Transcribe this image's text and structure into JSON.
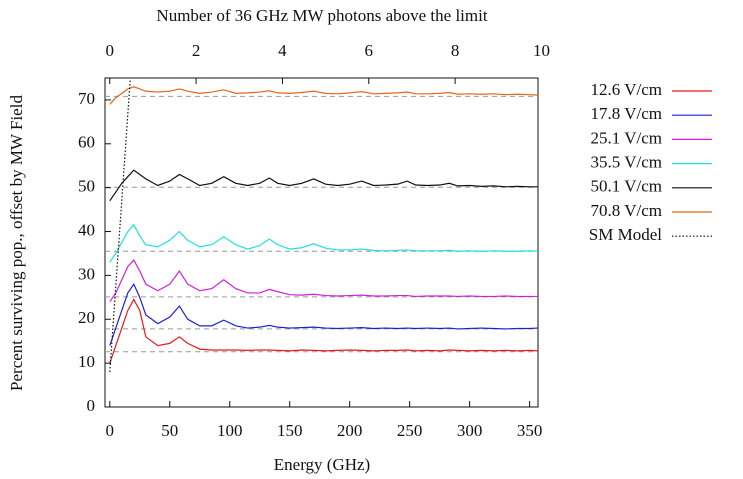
{
  "chart_data": {
    "type": "line",
    "xlabel": "Energy (GHz)",
    "x2label": "Number of 36 GHz MW photons above the limit",
    "ylabel": "Percent surviving pop., offset by MW Field",
    "xlim": [
      -4,
      357
    ],
    "xticks": [
      0,
      50,
      100,
      150,
      200,
      250,
      300,
      350
    ],
    "x2lim": [
      -0.11,
      9.92
    ],
    "x2ticks": [
      0,
      2,
      4,
      6,
      8,
      10
    ],
    "ylim": [
      0,
      75
    ],
    "yticks": [
      0,
      10,
      20,
      30,
      40,
      50,
      60,
      70
    ],
    "grid": false,
    "legend": "outside-right",
    "reference_lines": [
      12.6,
      17.8,
      25.1,
      35.5,
      50.1,
      70.8
    ],
    "reference_color": "#999999",
    "x": [
      0,
      5,
      10,
      15,
      20,
      25,
      30,
      40,
      50,
      58,
      65,
      75,
      85,
      95,
      105,
      115,
      125,
      133,
      140,
      150,
      160,
      170,
      180,
      190,
      200,
      210,
      220,
      230,
      240,
      248,
      255,
      265,
      275,
      283,
      290,
      300,
      310,
      320,
      330,
      340,
      350,
      357
    ],
    "series": [
      {
        "name": "12.6 V/cm",
        "color": "#e41a1c",
        "values": [
          10,
          14,
          18,
          22,
          24.5,
          22,
          16,
          14,
          14.5,
          16,
          14.5,
          13.2,
          13,
          13,
          13,
          12.9,
          13,
          13,
          12.9,
          12.8,
          13,
          12.9,
          12.8,
          12.9,
          13,
          12.9,
          12.8,
          12.9,
          12.9,
          13,
          12.8,
          12.9,
          12.8,
          13,
          12.9,
          12.8,
          12.9,
          12.8,
          12.9,
          12.8,
          12.9,
          12.8
        ]
      },
      {
        "name": "17.8 V/cm",
        "color": "#1f1fd6",
        "values": [
          14,
          18,
          22,
          26,
          28,
          25,
          21,
          19,
          20.5,
          23,
          20,
          18.5,
          18.5,
          19.8,
          18.5,
          18,
          18.2,
          18.6,
          18.2,
          18,
          18.1,
          18.2,
          18,
          17.9,
          18,
          18.1,
          17.9,
          18,
          17.9,
          18,
          17.9,
          18,
          17.9,
          18,
          17.8,
          17.9,
          18,
          17.9,
          17.8,
          17.9,
          17.9,
          18
        ]
      },
      {
        "name": "25.1 V/cm",
        "color": "#d21fd6",
        "values": [
          24,
          26,
          29,
          32,
          33.5,
          31,
          28,
          26.5,
          28,
          31,
          28,
          26.5,
          27,
          29,
          27,
          26,
          26,
          26.8,
          26.3,
          25.6,
          25.5,
          25.7,
          25.4,
          25.3,
          25.4,
          25.5,
          25.3,
          25.3,
          25.4,
          25.4,
          25.2,
          25.3,
          25.3,
          25.3,
          25.2,
          25.3,
          25.2,
          25.2,
          25.3,
          25.2,
          25.2,
          25.2
        ]
      },
      {
        "name": "35.5 V/cm",
        "color": "#1fe0e0",
        "values": [
          33,
          35,
          37.5,
          40,
          41.5,
          39,
          37,
          36.5,
          38,
          40,
          38,
          36.5,
          37,
          38.8,
          37,
          36,
          36.8,
          38.3,
          37,
          36,
          36.3,
          37.2,
          36.2,
          35.8,
          35.8,
          36,
          35.7,
          35.6,
          35.7,
          35.8,
          35.6,
          35.6,
          35.6,
          35.7,
          35.5,
          35.6,
          35.5,
          35.6,
          35.5,
          35.5,
          35.6,
          35.5
        ]
      },
      {
        "name": "50.1 V/cm",
        "color": "#111111",
        "values": [
          47,
          49,
          51,
          52.5,
          54,
          53,
          52,
          50.5,
          51.5,
          53,
          52,
          50.5,
          51,
          52.5,
          51,
          50.5,
          51,
          52.2,
          51,
          50.5,
          51,
          52,
          50.8,
          50.5,
          50.8,
          51.5,
          50.5,
          50.6,
          50.8,
          51.5,
          50.6,
          50.5,
          50.6,
          51,
          50.4,
          50.5,
          50.3,
          50.4,
          50.2,
          50.3,
          50.2,
          50.2
        ]
      },
      {
        "name": "70.8 V/cm",
        "color": "#e6661a",
        "values": [
          69,
          70.5,
          71.5,
          72.5,
          73,
          72.5,
          72,
          71.8,
          72,
          72.5,
          72,
          71.5,
          71.8,
          72.3,
          71.5,
          71.6,
          71.8,
          72.1,
          71.6,
          71.5,
          71.7,
          72,
          71.5,
          71.4,
          71.6,
          71.9,
          71.4,
          71.5,
          71.6,
          71.8,
          71.4,
          71.4,
          71.5,
          71.7,
          71.3,
          71.4,
          71.3,
          71.4,
          71.2,
          71.3,
          71.2,
          71.1
        ]
      },
      {
        "name": "SM Model",
        "color": "#111111",
        "dash": "dotted",
        "x": [
          0,
          17
        ],
        "values": [
          8,
          74.5
        ]
      }
    ]
  }
}
